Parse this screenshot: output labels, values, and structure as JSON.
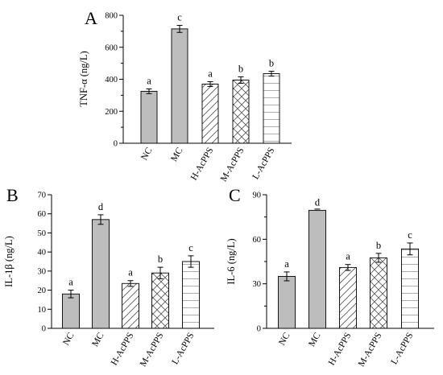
{
  "chart_data": [
    {
      "type": "bar",
      "panel": "A",
      "ylabel": "TNF-α (ng/L)",
      "categories": [
        "NC",
        "MC",
        "H-AcPPS",
        "M-AcPPS",
        "L-AcPPS"
      ],
      "values": [
        325,
        715,
        370,
        395,
        435
      ],
      "errors": [
        15,
        22,
        15,
        20,
        15
      ],
      "significance": [
        "a",
        "c",
        "a",
        "b",
        "b"
      ],
      "ylim": [
        0,
        800
      ],
      "yticks": [
        0,
        200,
        400,
        600,
        800
      ],
      "yticks_minor": [
        100,
        300,
        500,
        700
      ],
      "patterns": [
        "solid-gray",
        "solid-gray",
        "diagonal",
        "crosshatch",
        "horizontal"
      ]
    },
    {
      "type": "bar",
      "panel": "B",
      "ylabel": "IL-1β (ng/L)",
      "categories": [
        "NC",
        "MC",
        "H-AcPPS",
        "M-AcPPS",
        "L-AcPPS"
      ],
      "values": [
        18,
        57,
        23.5,
        29,
        35
      ],
      "errors": [
        2,
        2.5,
        1.5,
        3,
        3
      ],
      "significance": [
        "a",
        "d",
        "a",
        "b",
        "c"
      ],
      "ylim": [
        0,
        70
      ],
      "yticks": [
        0,
        10,
        20,
        30,
        40,
        50,
        60,
        70
      ],
      "yticks_minor": [],
      "patterns": [
        "solid-gray",
        "solid-gray",
        "diagonal",
        "crosshatch",
        "horizontal"
      ]
    },
    {
      "type": "bar",
      "panel": "C",
      "ylabel": "IL-6 (ng/L)",
      "categories": [
        "NC",
        "MC",
        "H-AcPPS",
        "M-AcPPS",
        "L-AcPPS"
      ],
      "values": [
        35,
        79.5,
        41,
        47.5,
        53.5
      ],
      "errors": [
        3,
        0,
        2,
        3,
        4
      ],
      "significance": [
        "a",
        "d",
        "a",
        "b",
        "c"
      ],
      "ylim": [
        0,
        90
      ],
      "yticks": [
        0,
        30,
        60,
        90
      ],
      "yticks_minor": [
        15,
        45,
        75
      ],
      "patterns": [
        "solid-gray",
        "solid-gray",
        "diagonal",
        "crosshatch",
        "horizontal"
      ]
    }
  ],
  "colors": {
    "solid_fill": "#bdbdbd",
    "outline": "#000000",
    "hatch": "#555555",
    "background": "#ffffff"
  }
}
